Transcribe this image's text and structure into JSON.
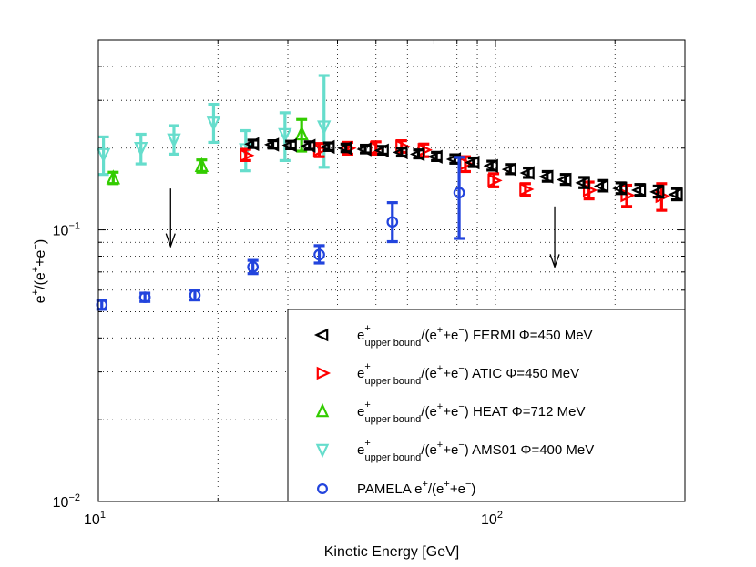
{
  "chart_data": {
    "type": "scatter",
    "xlabel": "Kinetic Energy [GeV]",
    "ylabel": "e+/(e++e−)",
    "xscale": "log",
    "yscale": "log",
    "xlim": [
      10,
      300
    ],
    "ylim": [
      0.01,
      0.5
    ],
    "grid": true,
    "legend_position": "lower-right",
    "x_ticks": [
      {
        "value": 10,
        "base": "10",
        "exp": "1"
      },
      {
        "value": 100,
        "base": "10",
        "exp": "2"
      }
    ],
    "y_ticks": [
      {
        "value": 0.01,
        "base": "10",
        "exp": "−2"
      },
      {
        "value": 0.1,
        "base": "10",
        "exp": "−1"
      }
    ],
    "series": [
      {
        "name": "e+upper bound/(e++e−) FERMI  Φ=450 MeV",
        "legend_parts": {
          "main": "e",
          "sup": "+",
          "sub": "upper bound",
          "rest": "/(e",
          "sup2": "+",
          "rest2": "+e",
          "sup3": "−",
          "rest3": ")",
          "tail": " FERMI  Φ=450 MeV"
        },
        "marker": "triangle-left",
        "color": "#000000",
        "points": [
          {
            "x": 24.5,
            "y": 0.207,
            "lo": 0.201,
            "hi": 0.214
          },
          {
            "x": 27.5,
            "y": 0.206,
            "lo": 0.2,
            "hi": 0.213
          },
          {
            "x": 30.5,
            "y": 0.205,
            "lo": 0.199,
            "hi": 0.212
          },
          {
            "x": 34.0,
            "y": 0.204,
            "lo": 0.198,
            "hi": 0.211
          },
          {
            "x": 38.0,
            "y": 0.202,
            "lo": 0.196,
            "hi": 0.209
          },
          {
            "x": 42.0,
            "y": 0.2,
            "lo": 0.194,
            "hi": 0.207
          },
          {
            "x": 47.0,
            "y": 0.198,
            "lo": 0.192,
            "hi": 0.205
          },
          {
            "x": 52.0,
            "y": 0.196,
            "lo": 0.19,
            "hi": 0.203
          },
          {
            "x": 58.0,
            "y": 0.193,
            "lo": 0.187,
            "hi": 0.2
          },
          {
            "x": 64.0,
            "y": 0.19,
            "lo": 0.184,
            "hi": 0.197
          },
          {
            "x": 71.0,
            "y": 0.186,
            "lo": 0.18,
            "hi": 0.193
          },
          {
            "x": 79.0,
            "y": 0.182,
            "lo": 0.176,
            "hi": 0.189
          },
          {
            "x": 88.0,
            "y": 0.177,
            "lo": 0.171,
            "hi": 0.184
          },
          {
            "x": 98.0,
            "y": 0.172,
            "lo": 0.166,
            "hi": 0.179
          },
          {
            "x": 109.0,
            "y": 0.167,
            "lo": 0.161,
            "hi": 0.174
          },
          {
            "x": 121.0,
            "y": 0.162,
            "lo": 0.156,
            "hi": 0.169
          },
          {
            "x": 135.0,
            "y": 0.157,
            "lo": 0.151,
            "hi": 0.164
          },
          {
            "x": 150.0,
            "y": 0.153,
            "lo": 0.147,
            "hi": 0.16
          },
          {
            "x": 167.0,
            "y": 0.149,
            "lo": 0.143,
            "hi": 0.156
          },
          {
            "x": 186.0,
            "y": 0.145,
            "lo": 0.139,
            "hi": 0.152
          },
          {
            "x": 207.0,
            "y": 0.142,
            "lo": 0.136,
            "hi": 0.149
          },
          {
            "x": 231.0,
            "y": 0.14,
            "lo": 0.134,
            "hi": 0.147
          },
          {
            "x": 257.0,
            "y": 0.138,
            "lo": 0.132,
            "hi": 0.145
          },
          {
            "x": 286.0,
            "y": 0.135,
            "lo": 0.129,
            "hi": 0.142
          }
        ]
      },
      {
        "name": "e+upper bound/(e++e−) ATIC Φ=450 MeV",
        "legend_parts": {
          "main": "e",
          "sup": "+",
          "sub": "upper bound",
          "rest": "/(e",
          "sup2": "+",
          "rest2": "+e",
          "sup3": "−",
          "rest3": ")",
          "tail": " ATIC Φ=450 MeV"
        },
        "marker": "triangle-right",
        "color": "#ff0000",
        "points": [
          {
            "x": 23.5,
            "y": 0.188,
            "lo": 0.18,
            "hi": 0.198
          },
          {
            "x": 36.0,
            "y": 0.197,
            "lo": 0.186,
            "hi": 0.208
          },
          {
            "x": 42.5,
            "y": 0.2,
            "lo": 0.19,
            "hi": 0.21
          },
          {
            "x": 50.0,
            "y": 0.2,
            "lo": 0.19,
            "hi": 0.211
          },
          {
            "x": 58.0,
            "y": 0.203,
            "lo": 0.193,
            "hi": 0.213
          },
          {
            "x": 66.0,
            "y": 0.197,
            "lo": 0.186,
            "hi": 0.207
          },
          {
            "x": 84.0,
            "y": 0.175,
            "lo": 0.164,
            "hi": 0.186
          },
          {
            "x": 99.0,
            "y": 0.152,
            "lo": 0.144,
            "hi": 0.161
          },
          {
            "x": 119.0,
            "y": 0.141,
            "lo": 0.134,
            "hi": 0.148
          },
          {
            "x": 172.0,
            "y": 0.14,
            "lo": 0.13,
            "hi": 0.15
          },
          {
            "x": 214.0,
            "y": 0.134,
            "lo": 0.122,
            "hi": 0.146
          },
          {
            "x": 262.0,
            "y": 0.133,
            "lo": 0.118,
            "hi": 0.148
          }
        ]
      },
      {
        "name": "e+upper bound/(e++e−) HEAT Φ=712 MeV",
        "legend_parts": {
          "main": "e",
          "sup": "+",
          "sub": "upper bound",
          "rest": "/(e",
          "sup2": "+",
          "rest2": "+e",
          "sup3": "−",
          "rest3": ")",
          "tail": " HEAT Φ=712 MeV"
        },
        "marker": "triangle-up",
        "color": "#33cc00",
        "points": [
          {
            "x": 10.9,
            "y": 0.155,
            "lo": 0.148,
            "hi": 0.163
          },
          {
            "x": 18.2,
            "y": 0.172,
            "lo": 0.163,
            "hi": 0.181
          },
          {
            "x": 32.5,
            "y": 0.225,
            "lo": 0.195,
            "hi": 0.255
          }
        ]
      },
      {
        "name": "e+upper bound/(e++e−) AMS01  Φ=400 MeV",
        "legend_parts": {
          "main": "e",
          "sup": "+",
          "sub": "upper bound",
          "rest": "/(e",
          "sup2": "+",
          "rest2": "+e",
          "sup3": "−",
          "rest3": ")",
          "tail": " AMS01  Φ=400 MeV"
        },
        "marker": "triangle-down",
        "color": "#66ddcc",
        "points": [
          {
            "x": 10.3,
            "y": 0.19,
            "lo": 0.16,
            "hi": 0.22
          },
          {
            "x": 12.8,
            "y": 0.2,
            "lo": 0.175,
            "hi": 0.225
          },
          {
            "x": 15.5,
            "y": 0.215,
            "lo": 0.19,
            "hi": 0.242
          },
          {
            "x": 19.5,
            "y": 0.248,
            "lo": 0.21,
            "hi": 0.29
          },
          {
            "x": 23.5,
            "y": 0.198,
            "lo": 0.165,
            "hi": 0.232
          },
          {
            "x": 29.5,
            "y": 0.225,
            "lo": 0.18,
            "hi": 0.27
          },
          {
            "x": 37.0,
            "y": 0.24,
            "lo": 0.17,
            "hi": 0.37
          }
        ]
      },
      {
        "name": "PAMELA e+/(e++e−)",
        "legend_parts": {
          "main": "PAMELA e",
          "sup": "+",
          "sub": "",
          "rest": "/(e",
          "sup2": "+",
          "rest2": "+e",
          "sup3": "−",
          "rest3": ")",
          "tail": ""
        },
        "marker": "circle",
        "color": "#2244dd",
        "points": [
          {
            "x": 10.2,
            "y": 0.053,
            "lo": 0.051,
            "hi": 0.055
          },
          {
            "x": 13.1,
            "y": 0.0565,
            "lo": 0.0545,
            "hi": 0.0585
          },
          {
            "x": 17.5,
            "y": 0.0575,
            "lo": 0.0552,
            "hi": 0.06
          },
          {
            "x": 24.5,
            "y": 0.073,
            "lo": 0.069,
            "hi": 0.0772
          },
          {
            "x": 36.0,
            "y": 0.081,
            "lo": 0.0755,
            "hi": 0.0875
          },
          {
            "x": 55.0,
            "y": 0.107,
            "lo": 0.0905,
            "hi": 0.126
          },
          {
            "x": 81.0,
            "y": 0.137,
            "lo": 0.093,
            "hi": 0.185
          }
        ]
      }
    ],
    "annotations": [
      {
        "type": "arrow-down",
        "x": 15.2,
        "y_from": 0.142,
        "y_to": 0.087
      },
      {
        "type": "arrow-down",
        "x": 141.0,
        "y_from": 0.122,
        "y_to": 0.073
      }
    ]
  }
}
